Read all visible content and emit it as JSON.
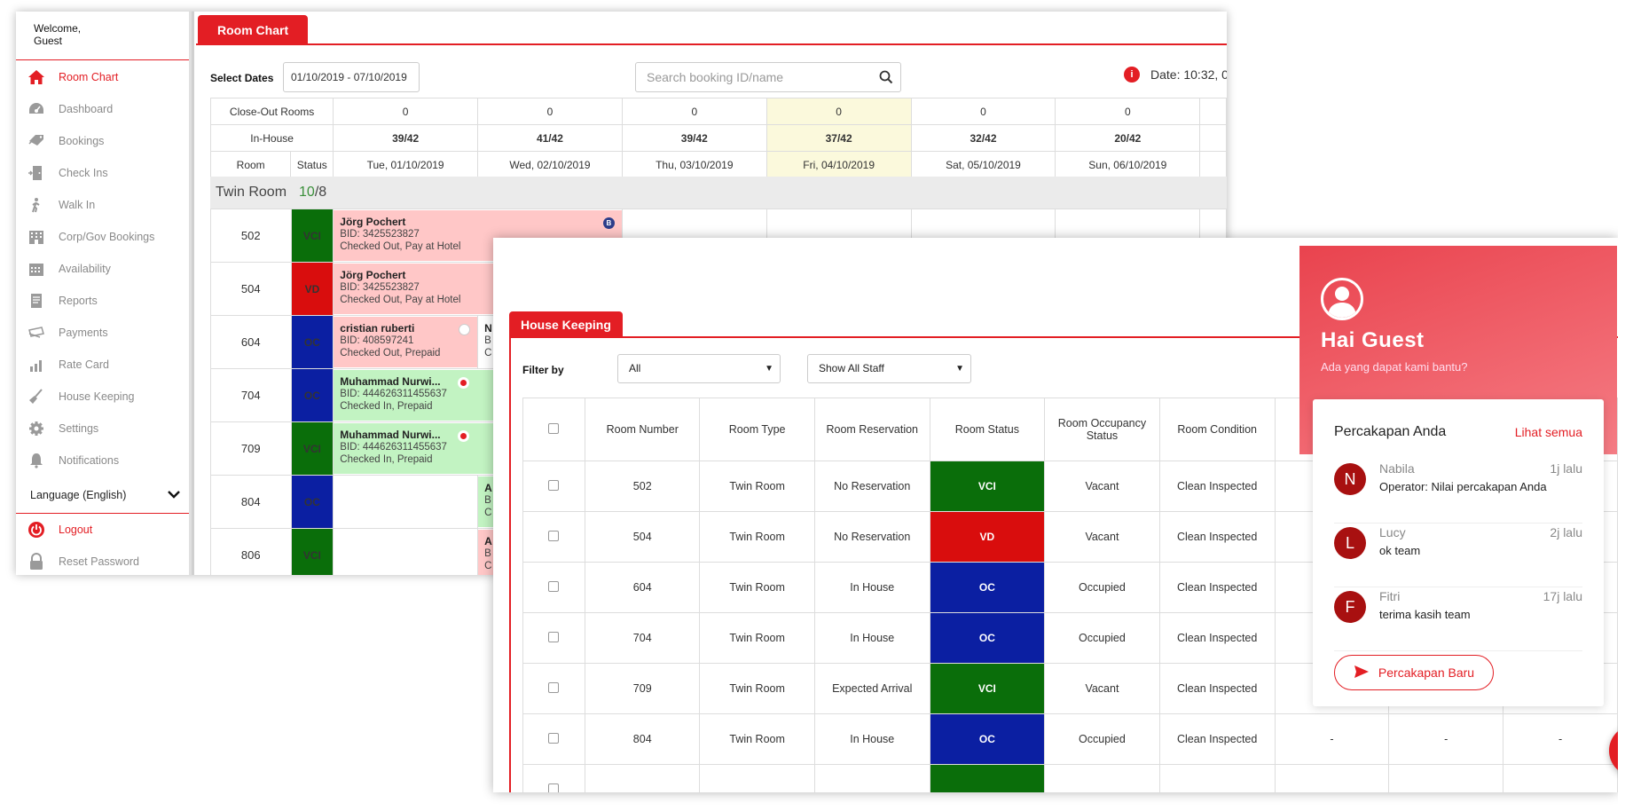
{
  "sidebar": {
    "welcome_line1": "Welcome,",
    "welcome_line2": "Guest",
    "items": [
      {
        "label": "Room Chart",
        "icon": "home-icon",
        "active": true
      },
      {
        "label": "Dashboard",
        "icon": "dashboard-icon"
      },
      {
        "label": "Bookings",
        "icon": "tag-icon"
      },
      {
        "label": "Check Ins",
        "icon": "door-icon"
      },
      {
        "label": "Walk In",
        "icon": "walk-icon"
      },
      {
        "label": "Corp/Gov Bookings",
        "icon": "building-icon"
      },
      {
        "label": "Availability",
        "icon": "calendar-icon"
      },
      {
        "label": "Reports",
        "icon": "report-icon"
      },
      {
        "label": "Payments",
        "icon": "payment-icon"
      },
      {
        "label": "Rate Card",
        "icon": "bar-chart-icon"
      },
      {
        "label": "House Keeping",
        "icon": "broom-icon"
      },
      {
        "label": "Settings",
        "icon": "gear-icon"
      },
      {
        "label": "Notifications",
        "icon": "bell-icon"
      }
    ],
    "language": "Language (English)",
    "logout": "Logout",
    "reset_password": "Reset Password"
  },
  "room_chart": {
    "tab": "Room Chart",
    "select_dates_label": "Select Dates",
    "date_range": "01/10/2019 - 07/10/2019",
    "search_placeholder": "Search booking ID/name",
    "datetime": "Date: 10:32, 0",
    "close_out_label": "Close-Out Rooms",
    "in_house_label": "In-House",
    "room_col": "Room",
    "status_col": "Status",
    "days": [
      {
        "date": "Tue, 01/10/2019",
        "close_out": "0",
        "in_house": "39/42"
      },
      {
        "date": "Wed, 02/10/2019",
        "close_out": "0",
        "in_house": "41/42"
      },
      {
        "date": "Thu, 03/10/2019",
        "close_out": "0",
        "in_house": "39/42"
      },
      {
        "date": "Fri, 04/10/2019",
        "close_out": "0",
        "in_house": "37/42",
        "highlight": true
      },
      {
        "date": "Sat, 05/10/2019",
        "close_out": "0",
        "in_house": "32/42"
      },
      {
        "date": "Sun, 06/10/2019",
        "close_out": "0",
        "in_house": "20/42"
      }
    ],
    "section": {
      "name": "Twin Room",
      "available": "10",
      "total": "/8"
    },
    "rooms": [
      {
        "number": "502",
        "status": "VCI"
      },
      {
        "number": "504",
        "status": "VD"
      },
      {
        "number": "604",
        "status": "OC"
      },
      {
        "number": "704",
        "status": "OC"
      },
      {
        "number": "709",
        "status": "VCI"
      },
      {
        "number": "804",
        "status": "OC"
      },
      {
        "number": "806",
        "status": "VCI"
      }
    ],
    "bookings": [
      {
        "name": "Jörg Pochert",
        "bid": "BID: 3425523827",
        "state": "Checked Out, Pay at Hotel"
      },
      {
        "name": "Jörg Pochert",
        "bid": "BID: 3425523827",
        "state": "Checked Out, Pay at Hotel"
      },
      {
        "name": "cristian ruberti",
        "bid": "BID: 408597241",
        "state": "Checked Out, Prepaid"
      },
      {
        "name": "Muhammad Nurwi...",
        "bid": "BID: 444626311455637",
        "state": "Checked In, Prepaid"
      },
      {
        "name": "Muhammad Nurwi...",
        "bid": "BID: 444626311455637",
        "state": "Checked In, Prepaid"
      }
    ],
    "partial_604": {
      "name": "N",
      "line2": "B",
      "line3": "C"
    },
    "partial_804": {
      "name": "A",
      "line2": "B",
      "line3": "C"
    },
    "partial_806": {
      "name": "A",
      "line2": "B",
      "line3": "C"
    },
    "badge_letter": "B"
  },
  "house_keeping": {
    "tab": "House Keeping",
    "filter_label": "Filter by",
    "filter_value": "All",
    "staff_value": "Show All Staff",
    "headers": [
      "Room Number",
      "Room Type",
      "Room Reservation",
      "Room Status",
      "Room Occupancy Status",
      "Room Condition"
    ],
    "rows": [
      {
        "room": "502",
        "type": "Twin Room",
        "reservation": "No Reservation",
        "status": "VCI",
        "occupancy": "Vacant",
        "condition": "Clean Inspected"
      },
      {
        "room": "504",
        "type": "Twin Room",
        "reservation": "No Reservation",
        "status": "VD",
        "occupancy": "Vacant",
        "condition": "Clean Inspected"
      },
      {
        "room": "604",
        "type": "Twin Room",
        "reservation": "In House",
        "status": "OC",
        "occupancy": "Occupied",
        "condition": "Clean Inspected"
      },
      {
        "room": "704",
        "type": "Twin Room",
        "reservation": "In House",
        "status": "OC",
        "occupancy": "Occupied",
        "condition": "Clean Inspected"
      },
      {
        "room": "709",
        "type": "Twin Room",
        "reservation": "Expected Arrival",
        "status": "VCI",
        "occupancy": "Vacant",
        "condition": "Clean Inspected"
      },
      {
        "room": "804",
        "type": "Twin Room",
        "reservation": "In House",
        "status": "OC",
        "occupancy": "Occupied",
        "condition": "Clean Inspected"
      }
    ],
    "dash": "-"
  },
  "chat": {
    "greeting": "Hai Guest",
    "subtitle": "Ada yang dapat kami bantu?",
    "conversations_title": "Percakapan Anda",
    "see_all": "Lihat semua",
    "conversations": [
      {
        "initial": "N",
        "name": "Nabila",
        "time": "1j lalu",
        "message": "Operator: Nilai percakapan Anda"
      },
      {
        "initial": "L",
        "name": "Lucy",
        "time": "2j lalu",
        "message": "ok team"
      },
      {
        "initial": "F",
        "name": "Fitri",
        "time": "17j lalu",
        "message": "terima kasih team"
      }
    ],
    "new_conversation": "Percakapan Baru"
  },
  "colors": {
    "accent": "#e31e24",
    "vci": "#0a6e0a",
    "vd": "#d90d0d",
    "oc": "#0b1fa2"
  }
}
